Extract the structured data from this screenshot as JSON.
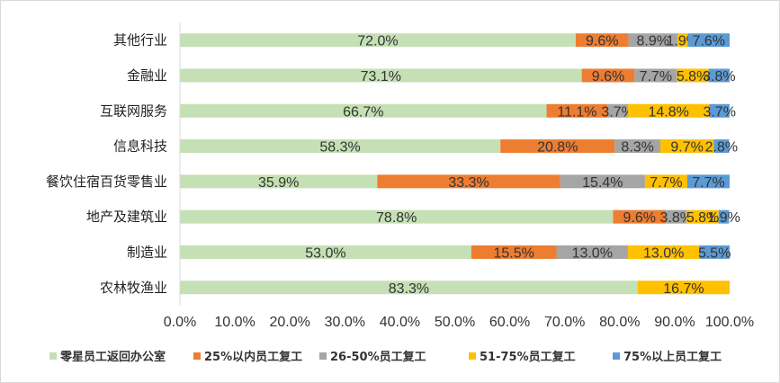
{
  "chart_data": {
    "type": "bar",
    "orientation": "horizontal",
    "stacked": true,
    "title": "",
    "xlabel": "",
    "ylabel": "",
    "xlim": [
      0,
      1
    ],
    "xticks": [
      "0.0%",
      "10.0%",
      "20.0%",
      "30.0%",
      "40.0%",
      "50.0%",
      "60.0%",
      "70.0%",
      "80.0%",
      "90.0%",
      "100.0%"
    ],
    "categories": [
      "其他行业",
      "金融业",
      "互联网服务",
      "信息科技",
      "餐饮住宿百货零售业",
      "地产及建筑业",
      "制造业",
      "农林牧渔业"
    ],
    "legend_position": "bottom",
    "series": [
      {
        "name": "零星员工返回办公室",
        "color": "#c5e0b4",
        "values": [
          0.72,
          0.731,
          0.667,
          0.583,
          0.359,
          0.788,
          0.53,
          0.833
        ],
        "labels": [
          "72.0%",
          "73.1%",
          "66.7%",
          "58.3%",
          "35.9%",
          "78.8%",
          "53.0%",
          "83.3%"
        ]
      },
      {
        "name": "25%以内员工复工",
        "color": "#ed7d31",
        "values": [
          0.096,
          0.096,
          0.111,
          0.208,
          0.333,
          0.096,
          0.155,
          0
        ],
        "labels": [
          "9.6%",
          "9.6%",
          "11.1%",
          "20.8%",
          "33.3%",
          "9.6%",
          "15.5%",
          ""
        ]
      },
      {
        "name": "26-50%员工复工",
        "color": "#a5a5a5",
        "values": [
          0.089,
          0.077,
          0.037,
          0.083,
          0.154,
          0.038,
          0.13,
          0
        ],
        "labels": [
          "8.9%",
          "7.7%",
          "3.7%",
          "8.3%",
          "15.4%",
          "3.8%",
          "13.0%",
          ""
        ]
      },
      {
        "name": "51-75%员工复工",
        "color": "#ffc000",
        "values": [
          0.019,
          0.058,
          0.148,
          0.097,
          0.077,
          0.058,
          0.13,
          0.167
        ],
        "labels": [
          "1.9%",
          "5.8%",
          "14.8%",
          "9.7%",
          "7.7%",
          "5.8%",
          "13.0%",
          "16.7%"
        ]
      },
      {
        "name": "75%以上员工复工",
        "color": "#5b9bd5",
        "values": [
          0.076,
          0.038,
          0.037,
          0.028,
          0.077,
          0.019,
          0.055,
          0
        ],
        "labels": [
          "7.6%",
          "3.8%",
          "3.7%",
          "2.8%",
          "7.7%",
          "1.9%",
          "5.5%",
          ""
        ]
      }
    ]
  }
}
